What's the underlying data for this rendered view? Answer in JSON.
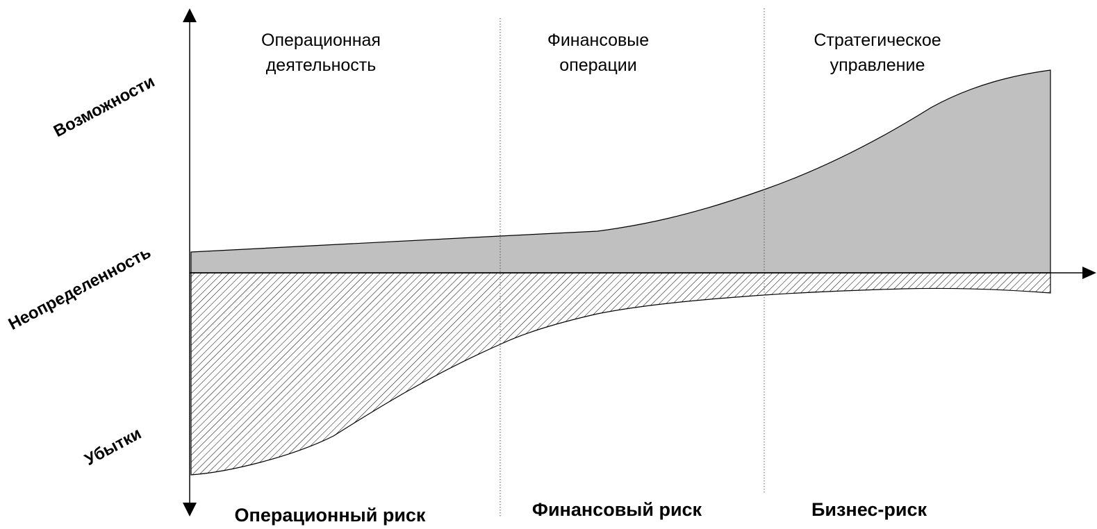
{
  "zones": [
    {
      "title": "Операционная\nдеятельность",
      "risk": "Операционный риск"
    },
    {
      "title": "Финансовые\nоперации",
      "risk": "Финансовый риск"
    },
    {
      "title": "Стратегическое\nуправление",
      "risk": "Бизнес-риск"
    }
  ],
  "y_axis_labels": {
    "top": "Возможности",
    "middle": "Неопределенность",
    "bottom": "Убытки"
  },
  "colors": {
    "opportunity_fill": "#c0c0c0",
    "loss_hatch": "#000000",
    "axis": "#000000"
  }
}
